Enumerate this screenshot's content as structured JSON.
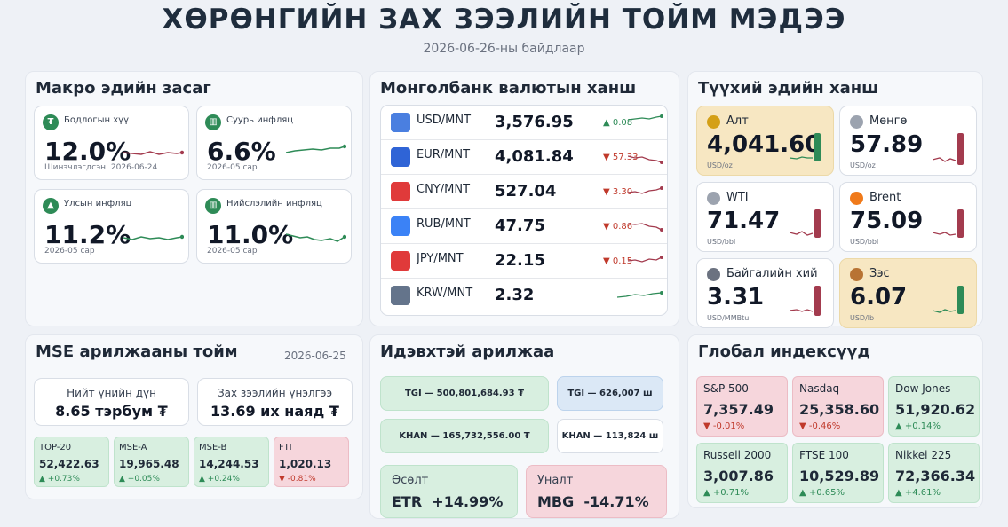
{
  "header": {
    "title": "ХӨРӨНГИЙН ЗАХ ЗЭЭЛИЙН ТОЙМ МЭДЭЭ",
    "subtitle": "2026-06-26-ны байдлаар"
  },
  "macro": {
    "title": "Макро эдийн засаг",
    "cards": [
      {
        "icon": "₮",
        "label": "Бодлогын хүү",
        "value": "12.0%",
        "sub": "Шинэчлэгдсэн: 2026-06-24",
        "trend": "down"
      },
      {
        "icon": "▥",
        "label": "Суурь инфляц",
        "value": "6.6%",
        "sub": "2026-05 сар",
        "trend": "up"
      },
      {
        "icon": "▲",
        "label": "Улсын инфляц",
        "value": "11.2%",
        "sub": "2026-05 сар",
        "trend": "up"
      },
      {
        "icon": "▥",
        "label": "Нийслэлийн инфляц",
        "value": "11.0%",
        "sub": "2026-05 сар",
        "trend": "up"
      }
    ]
  },
  "fx": {
    "title": "Монголбанк валютын ханш",
    "rows": [
      {
        "pair": "USD/MNT",
        "rate": "3,576.95",
        "change": "▲ 0.08",
        "dir": "up",
        "flag_color": "#4a7fe0"
      },
      {
        "pair": "EUR/MNT",
        "rate": "4,081.84",
        "change": "▼ 57.33",
        "dir": "down",
        "flag_color": "#2f64d6"
      },
      {
        "pair": "CNY/MNT",
        "rate": "527.04",
        "change": "▼ 3.30",
        "dir": "down",
        "flag_color": "#e03a3a"
      },
      {
        "pair": "RUB/MNT",
        "rate": "47.75",
        "change": "▼ 0.86",
        "dir": "down",
        "flag_color": "#3b82f6"
      },
      {
        "pair": "JPY/MNT",
        "rate": "22.15",
        "change": "▼ 0.15",
        "dir": "down",
        "flag_color": "#e03a3a"
      },
      {
        "pair": "KRW/MNT",
        "rate": "2.32",
        "change": "",
        "dir": "up",
        "flag_color": "#64748b"
      }
    ]
  },
  "commodities": {
    "title": "Түүхий эдийн ханш",
    "items": [
      {
        "name": "Алт",
        "value": "4,041.60",
        "unit": "USD/oz",
        "style": "gold",
        "dot": "#d4a017",
        "dir": "up"
      },
      {
        "name": "Мөнгө",
        "value": "57.89",
        "unit": "USD/oz",
        "style": "white",
        "dot": "#9ca3af",
        "dir": "down"
      },
      {
        "name": "WTI",
        "value": "71.47",
        "unit": "USD/bbl",
        "style": "white",
        "dot": "#9ca3af",
        "dir": "down"
      },
      {
        "name": "Brent",
        "value": "75.09",
        "unit": "USD/bbl",
        "style": "white",
        "dot": "#f07a1a",
        "dir": "down"
      },
      {
        "name": "Байгалийн хий",
        "value": "3.31",
        "unit": "USD/MMBtu",
        "style": "white",
        "dot": "#6b7280",
        "dir": "down"
      },
      {
        "name": "Зэс",
        "value": "6.07",
        "unit": "USD/lb",
        "style": "gold",
        "dot": "#b87333",
        "dir": "up"
      }
    ]
  },
  "mse": {
    "title": "MSE арилжааны тойм",
    "date": "2026-06-25",
    "turnover_label": "Нийт үнийн дүн",
    "turnover_value": "8.65 тэрбум ₮",
    "cap_label": "Зах зээлийн үнэлгээ",
    "cap_value": "13.69 их наяд ₮",
    "indices": [
      {
        "name": "TOP-20",
        "value": "52,422.63",
        "change": "▲ +0.73%",
        "dir": "up"
      },
      {
        "name": "MSE-A",
        "value": "19,965.48",
        "change": "▲ +0.05%",
        "dir": "up"
      },
      {
        "name": "MSE-B",
        "value": "14,244.53",
        "change": "▲ +0.24%",
        "dir": "up"
      },
      {
        "name": "FTI",
        "value": "1,020.13",
        "change": "▼ -0.81%",
        "dir": "down"
      }
    ]
  },
  "active": {
    "title": "Идэвхтэй арилжаа",
    "value_leaders": [
      "TGI — 500,801,684.93 ₮",
      "KHAN — 165,732,556.00 ₮"
    ],
    "volume_leaders": [
      "TGI — 626,007 ш",
      "KHAN — 113,824 ш"
    ],
    "gain_label": "Өсөлт",
    "gain_value": "ETR  +14.99%",
    "loss_label": "Уналт",
    "loss_value": "MBG  -14.71%"
  },
  "global": {
    "title": "Глобал индексүүд",
    "items": [
      {
        "name": "S&P 500",
        "value": "7,357.49",
        "change": "▼ -0.01%",
        "dir": "down"
      },
      {
        "name": "Nasdaq",
        "value": "25,358.60",
        "change": "▼ -0.46%",
        "dir": "down"
      },
      {
        "name": "Dow Jones",
        "value": "51,920.62",
        "change": "▲ +0.14%",
        "dir": "up"
      },
      {
        "name": "Russell 2000",
        "value": "3,007.86",
        "change": "▲ +0.71%",
        "dir": "up"
      },
      {
        "name": "FTSE 100",
        "value": "10,529.89",
        "change": "▲ +0.65%",
        "dir": "up"
      },
      {
        "name": "Nikkei 225",
        "value": "72,366.34",
        "change": "▲ +4.61%",
        "dir": "up"
      }
    ]
  },
  "colors": {
    "up": "#2e8b57",
    "down": "#c0392b",
    "title": "#1f2d3d"
  }
}
